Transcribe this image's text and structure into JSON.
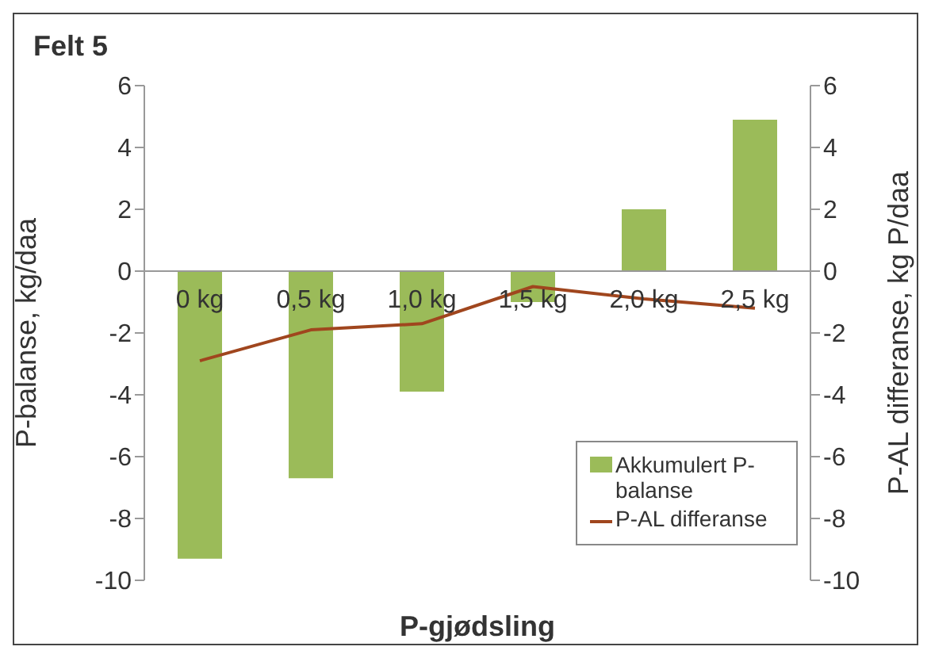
{
  "chart_data": {
    "type": "bar",
    "title": "Felt 5",
    "xlabel": "P-gjødsling",
    "ylabel": "P-balanse, kg/daa",
    "y2label": "P-AL differanse, kg P/daa",
    "categories": [
      "0 kg",
      "0,5 kg",
      "1,0 kg",
      "1,5 kg",
      "2,0 kg",
      "2,5 kg"
    ],
    "series": [
      {
        "name": "Akkumulert P-balanse",
        "color": "#9bbb59",
        "values": [
          -9.3,
          -6.7,
          -3.9,
          -1.0,
          2.0,
          4.9
        ]
      },
      {
        "name": "P-AL differanse",
        "type": "line",
        "axis": "y2",
        "color": "#a0461e",
        "values": [
          -2.9,
          -1.9,
          -1.7,
          -0.5,
          -0.9,
          -1.2
        ]
      }
    ],
    "ylim": [
      -10,
      6
    ],
    "yticks": [
      -10,
      -8,
      -6,
      -4,
      -2,
      0,
      2,
      4,
      6
    ],
    "y2lim": [
      -10,
      6
    ],
    "y2ticks": [
      -10,
      -8,
      -6,
      -4,
      -2,
      0,
      2,
      4,
      6
    ],
    "grid": false,
    "legend": "bottom right",
    "marker": "none"
  }
}
